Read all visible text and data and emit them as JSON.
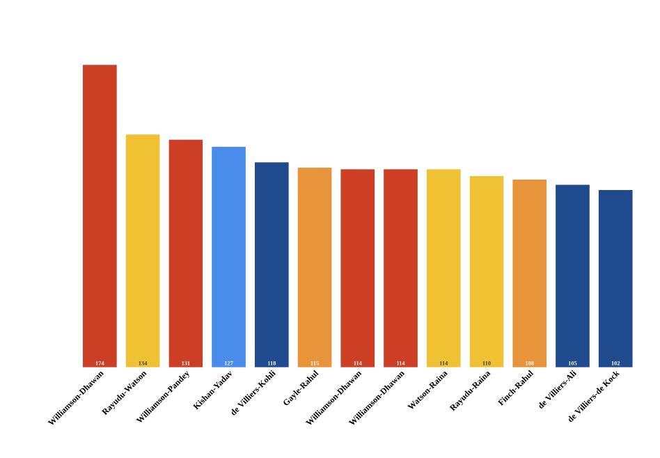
{
  "chart_data": {
    "type": "bar",
    "categories": [
      "Williamson-Dhawan",
      "Rayudu-Watson",
      "Williamson-Pandey",
      "Kishan-Yadav",
      "de Villiers-Kohli",
      "Gayle-Rahul",
      "Williamson-Dhawan",
      "Williamson-Dhawan",
      "Watson-Raina",
      "Rayudu-Raina",
      "Finch-Rahul",
      "de Villiers-Ali",
      "de Villiers-de Kock"
    ],
    "values": [
      174,
      134,
      131,
      127,
      118,
      115,
      114,
      114,
      114,
      110,
      108,
      105,
      102
    ],
    "colors": [
      "#cc3f25",
      "#f0c233",
      "#cc3f25",
      "#4a8cec",
      "#1f4a8e",
      "#e8943a",
      "#cc3f25",
      "#cc3f25",
      "#f0c233",
      "#f0c233",
      "#e8943a",
      "#1f4a8e",
      "#1f4a8e"
    ],
    "data_labels": true
  }
}
